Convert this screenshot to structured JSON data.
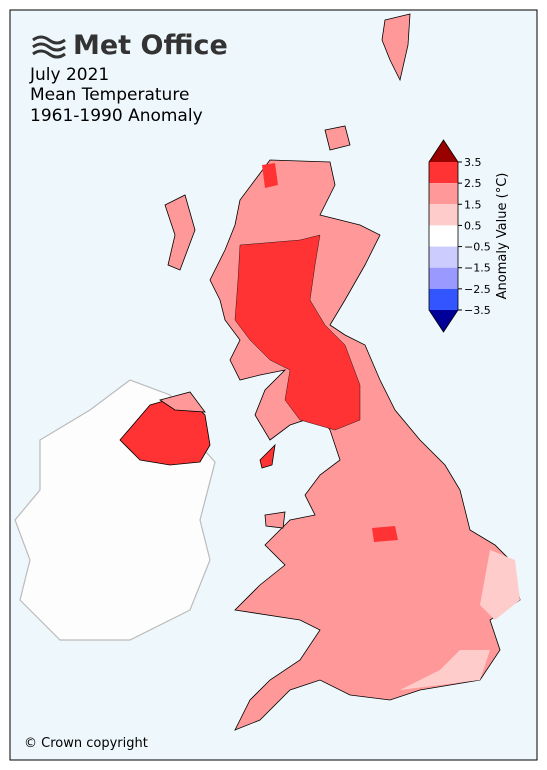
{
  "header": {
    "logo": "Met Office",
    "title_lines": [
      "July 2021",
      "Mean Temperature",
      "1961-1990 Anomaly"
    ]
  },
  "colorbar": {
    "label": "Anomaly Value (°C)",
    "ticks": [
      3.5,
      2.5,
      1.5,
      0.5,
      {
        "value": -0.5,
        "label": "−0.5"
      },
      {
        "value": -1.5,
        "label": "−1.5"
      },
      {
        "value": -2.5,
        "label": "−2.5"
      },
      {
        "value": -3.5,
        "label": "−3.5"
      }
    ],
    "colors": [
      "#ff3333",
      "#ff9999",
      "#ffcccc",
      "#ffffff",
      "#ccccff",
      "#9999ff",
      "#3355ff"
    ],
    "extend_colors": [
      "#990000",
      "#000099"
    ]
  },
  "footer": {
    "copyright": "© Crown copyright"
  }
}
